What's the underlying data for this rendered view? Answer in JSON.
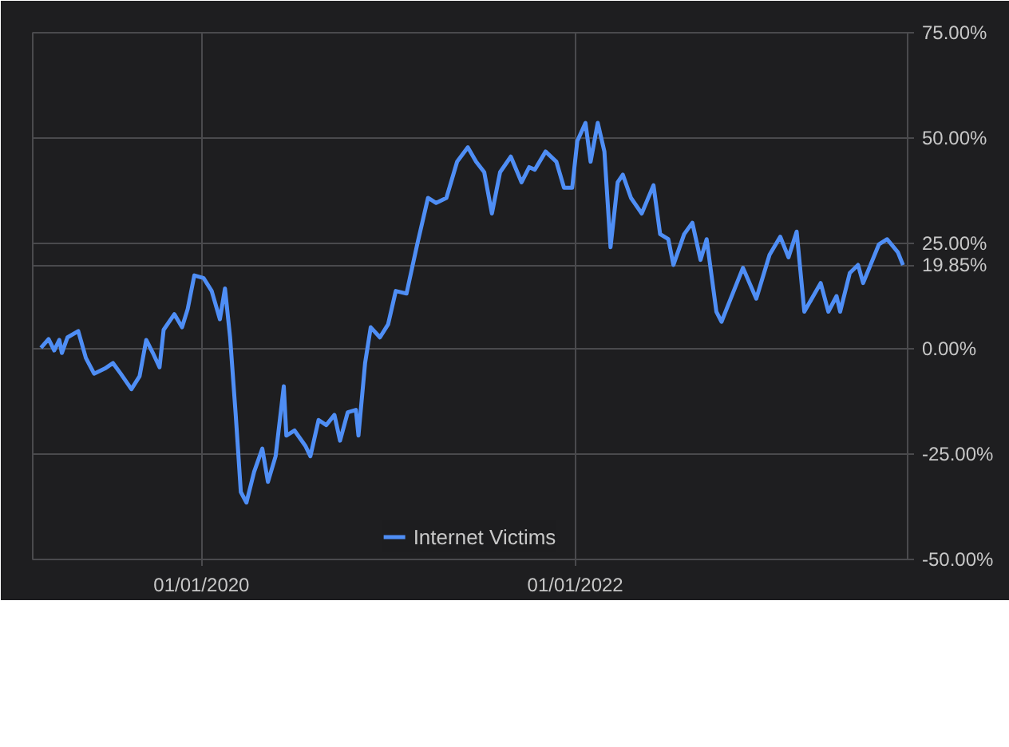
{
  "chart_data": {
    "type": "line",
    "legend": "bottom",
    "grid": true,
    "marker": "none",
    "line_style": "solid",
    "xlim": [
      "2019-02-05",
      "2023-10-13"
    ],
    "xticks": [
      {
        "value": "2020-01-01",
        "label": "01/01/2020"
      },
      {
        "value": "2022-01-01",
        "label": "01/01/2022"
      }
    ],
    "ylim": [
      -50,
      75
    ],
    "yticks": [
      {
        "value": -50,
        "label": "-50.00%"
      },
      {
        "value": -25,
        "label": "-25.00%"
      },
      {
        "value": 0,
        "label": "0.00%"
      },
      {
        "value": 19.85,
        "label": "19.85%"
      },
      {
        "value": 25,
        "label": "25.00%"
      },
      {
        "value": 50,
        "label": "50.00%"
      },
      {
        "value": 75,
        "label": "75.00%"
      }
    ],
    "series": [
      {
        "name": "Internet Victims",
        "color": "#4f8ef5",
        "x": [
          "2019-02-21",
          "2019-03-08",
          "2019-03-19",
          "2019-03-29",
          "2019-04-03",
          "2019-04-14",
          "2019-05-05",
          "2019-05-20",
          "2019-06-05",
          "2019-06-26",
          "2019-07-12",
          "2019-07-27",
          "2019-08-17",
          "2019-09-02",
          "2019-09-15",
          "2019-09-28",
          "2019-10-11",
          "2019-10-19",
          "2019-11-09",
          "2019-11-24",
          "2019-12-05",
          "2019-12-18",
          "2020-01-05",
          "2020-01-21",
          "2020-02-06",
          "2020-02-16",
          "2020-02-26",
          "2020-03-08",
          "2020-03-18",
          "2020-03-29",
          "2020-04-13",
          "2020-04-29",
          "2020-05-10",
          "2020-05-25",
          "2020-06-10",
          "2020-06-15",
          "2020-07-01",
          "2020-07-22",
          "2020-08-01",
          "2020-08-17",
          "2020-09-01",
          "2020-09-17",
          "2020-09-28",
          "2020-10-13",
          "2020-10-29",
          "2020-11-03",
          "2020-11-16",
          "2020-11-27",
          "2020-12-15",
          "2020-12-31",
          "2021-01-15",
          "2021-02-05",
          "2021-02-26",
          "2021-03-19",
          "2021-04-04",
          "2021-04-24",
          "2021-05-15",
          "2021-06-05",
          "2021-06-21",
          "2021-07-07",
          "2021-07-22",
          "2021-08-07",
          "2021-08-28",
          "2021-09-18",
          "2021-10-03",
          "2021-10-14",
          "2021-11-04",
          "2021-11-25",
          "2021-12-10",
          "2021-12-26",
          "2022-01-05",
          "2022-01-21",
          "2022-01-31",
          "2022-02-14",
          "2022-02-27",
          "2022-03-11",
          "2022-03-25",
          "2022-04-04",
          "2022-04-20",
          "2022-05-11",
          "2022-06-03",
          "2022-06-16",
          "2022-07-02",
          "2022-07-12",
          "2022-08-02",
          "2022-08-18",
          "2022-09-03",
          "2022-09-15",
          "2022-10-04",
          "2022-10-14",
          "2022-10-30",
          "2022-11-25",
          "2022-12-21",
          "2023-01-16",
          "2023-02-06",
          "2023-02-22",
          "2023-03-10",
          "2023-03-25",
          "2023-04-26",
          "2023-05-11",
          "2023-05-27",
          "2023-06-03",
          "2023-06-22",
          "2023-07-08",
          "2023-07-18",
          "2023-08-18",
          "2023-09-03",
          "2023-09-24",
          "2023-10-04"
        ],
        "values": [
          0.2,
          2.3,
          -0.4,
          2.1,
          -1,
          2.7,
          4.2,
          -2.2,
          -5.9,
          -4.7,
          -3.4,
          -5.9,
          -9.6,
          -6.5,
          2.1,
          -1,
          -4.4,
          4.5,
          8.2,
          5.1,
          9.4,
          17.4,
          16.8,
          13.7,
          7,
          14.3,
          2.7,
          -15.7,
          -34,
          -36.5,
          -29.2,
          -23.7,
          -31.6,
          -25.5,
          -8.9,
          -20.6,
          -19.4,
          -23,
          -25.5,
          -16.9,
          -18.1,
          -15.7,
          -21.8,
          -15.1,
          -14.5,
          -20.6,
          -3.4,
          5.1,
          2.7,
          5.8,
          13.7,
          13.1,
          24.8,
          35.8,
          34.6,
          35.8,
          44.4,
          47.8,
          44.4,
          41.9,
          32.1,
          41.9,
          45.6,
          39.5,
          43.1,
          42.5,
          46.8,
          44.4,
          38.2,
          38.2,
          49.3,
          53.6,
          44.4,
          53.6,
          46.8,
          24.1,
          39.5,
          41.3,
          35.8,
          32.1,
          38.8,
          27.2,
          26,
          19.9,
          27.2,
          29.9,
          21.1,
          26,
          8.8,
          6.4,
          11.3,
          19.2,
          11.9,
          22.3,
          26.6,
          21.7,
          27.8,
          8.8,
          15.6,
          8.8,
          12.5,
          8.8,
          18,
          19.9,
          15.6,
          24.8,
          26,
          22.9,
          19.85
        ]
      }
    ]
  }
}
